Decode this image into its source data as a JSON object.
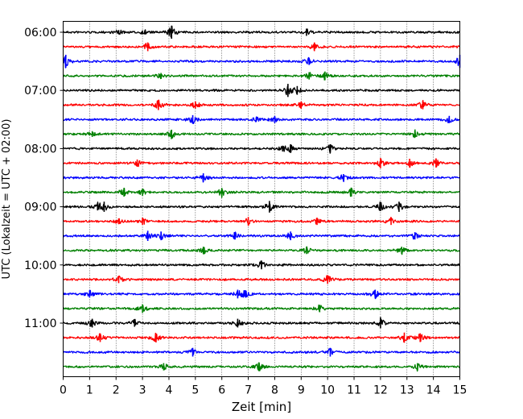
{
  "chart_data": {
    "type": "line",
    "title": "",
    "xlabel": "Zeit  [min]",
    "ylabel": "UTC (Lokalzeit = UTC + 02:00)",
    "xlim": [
      0,
      15
    ],
    "xticks": [
      0,
      1,
      2,
      3,
      4,
      5,
      6,
      7,
      8,
      9,
      10,
      11,
      12,
      13,
      14,
      15
    ],
    "yticks": [
      {
        "value": "06:00",
        "row": 0
      },
      {
        "value": "07:00",
        "row": 4
      },
      {
        "value": "08:00",
        "row": 8
      },
      {
        "value": "09:00",
        "row": 12
      },
      {
        "value": "10:00",
        "row": 16
      },
      {
        "value": "11:00",
        "row": 20
      }
    ],
    "row_interval_minutes": 15,
    "first_row_start": "06:00",
    "grid": "vertical dotted at each minute",
    "colors": [
      "#000000",
      "#ff0000",
      "#0000ff",
      "#008000"
    ],
    "rows": [
      {
        "start": "06:00",
        "color": "#000000",
        "events": [
          [
            2.1,
            0.3
          ],
          [
            3.1,
            0.3
          ],
          [
            4.1,
            0.9
          ],
          [
            9.2,
            0.5
          ]
        ]
      },
      {
        "start": "06:15",
        "color": "#ff0000",
        "events": [
          [
            3.2,
            0.6
          ],
          [
            9.5,
            0.6
          ]
        ]
      },
      {
        "start": "06:30",
        "color": "#0000ff",
        "events": [
          [
            0.1,
            0.9
          ],
          [
            9.3,
            0.5
          ],
          [
            15.0,
            0.9
          ]
        ]
      },
      {
        "start": "06:45",
        "color": "#008000",
        "events": [
          [
            3.7,
            0.4
          ],
          [
            9.3,
            0.5
          ],
          [
            9.9,
            0.6
          ]
        ]
      },
      {
        "start": "07:00",
        "color": "#000000",
        "events": [
          [
            8.5,
            0.9
          ],
          [
            8.85,
            0.6
          ]
        ]
      },
      {
        "start": "07:15",
        "color": "#ff0000",
        "events": [
          [
            3.6,
            0.7
          ],
          [
            5.0,
            0.5
          ],
          [
            9.0,
            0.5
          ],
          [
            13.6,
            0.6
          ]
        ]
      },
      {
        "start": "07:30",
        "color": "#0000ff",
        "events": [
          [
            4.9,
            0.6
          ],
          [
            7.3,
            0.3
          ],
          [
            8.0,
            0.5
          ],
          [
            14.6,
            0.5
          ]
        ]
      },
      {
        "start": "07:45",
        "color": "#008000",
        "events": [
          [
            1.1,
            0.4
          ],
          [
            4.1,
            0.6
          ],
          [
            13.3,
            0.5
          ]
        ]
      },
      {
        "start": "08:00",
        "color": "#000000",
        "events": [
          [
            8.3,
            0.4
          ],
          [
            8.6,
            0.6
          ],
          [
            10.1,
            0.6
          ]
        ]
      },
      {
        "start": "08:15",
        "color": "#ff0000",
        "events": [
          [
            2.8,
            0.5
          ],
          [
            12.0,
            0.7
          ],
          [
            13.1,
            0.6
          ],
          [
            14.1,
            0.6
          ]
        ]
      },
      {
        "start": "08:30",
        "color": "#0000ff",
        "events": [
          [
            5.3,
            0.6
          ],
          [
            10.6,
            0.5
          ]
        ]
      },
      {
        "start": "08:45",
        "color": "#008000",
        "events": [
          [
            2.3,
            0.6
          ],
          [
            3.0,
            0.5
          ],
          [
            6.0,
            0.6
          ],
          [
            10.9,
            0.6
          ]
        ]
      },
      {
        "start": "09:00",
        "color": "#000000",
        "events": [
          [
            1.3,
            0.5
          ],
          [
            1.55,
            0.7
          ],
          [
            7.8,
            0.8
          ],
          [
            12.0,
            0.6
          ],
          [
            12.7,
            0.7
          ]
        ]
      },
      {
        "start": "09:15",
        "color": "#ff0000",
        "events": [
          [
            2.1,
            0.4
          ],
          [
            3.0,
            0.5
          ],
          [
            7.0,
            0.6
          ],
          [
            9.6,
            0.5
          ],
          [
            12.4,
            0.5
          ]
        ]
      },
      {
        "start": "09:30",
        "color": "#0000ff",
        "events": [
          [
            3.2,
            0.7
          ],
          [
            3.7,
            0.6
          ],
          [
            6.5,
            0.5
          ],
          [
            8.6,
            0.6
          ],
          [
            13.3,
            0.5
          ]
        ]
      },
      {
        "start": "09:45",
        "color": "#008000",
        "events": [
          [
            5.3,
            0.5
          ],
          [
            9.2,
            0.5
          ],
          [
            12.8,
            0.5
          ]
        ]
      },
      {
        "start": "10:00",
        "color": "#000000",
        "events": [
          [
            7.5,
            0.6
          ]
        ]
      },
      {
        "start": "10:15",
        "color": "#ff0000",
        "events": [
          [
            2.1,
            0.5
          ],
          [
            10.0,
            0.6
          ]
        ]
      },
      {
        "start": "10:30",
        "color": "#0000ff",
        "events": [
          [
            1.0,
            0.5
          ],
          [
            6.6,
            0.6
          ],
          [
            6.9,
            0.5
          ],
          [
            11.8,
            0.6
          ]
        ]
      },
      {
        "start": "10:45",
        "color": "#008000",
        "events": [
          [
            3.0,
            0.6
          ],
          [
            9.7,
            0.5
          ]
        ]
      },
      {
        "start": "11:00",
        "color": "#000000",
        "events": [
          [
            1.1,
            0.6
          ],
          [
            2.7,
            0.5
          ],
          [
            6.6,
            0.6
          ],
          [
            12.0,
            0.7
          ]
        ]
      },
      {
        "start": "11:15",
        "color": "#ff0000",
        "events": [
          [
            1.4,
            0.6
          ],
          [
            3.5,
            0.6
          ],
          [
            12.9,
            0.7
          ],
          [
            13.5,
            0.6
          ]
        ]
      },
      {
        "start": "11:30",
        "color": "#0000ff",
        "events": [
          [
            4.9,
            0.6
          ],
          [
            10.1,
            0.6
          ]
        ]
      },
      {
        "start": "11:45",
        "color": "#008000",
        "events": [
          [
            3.8,
            0.5
          ],
          [
            7.4,
            0.6
          ],
          [
            13.4,
            0.5
          ]
        ]
      }
    ]
  }
}
